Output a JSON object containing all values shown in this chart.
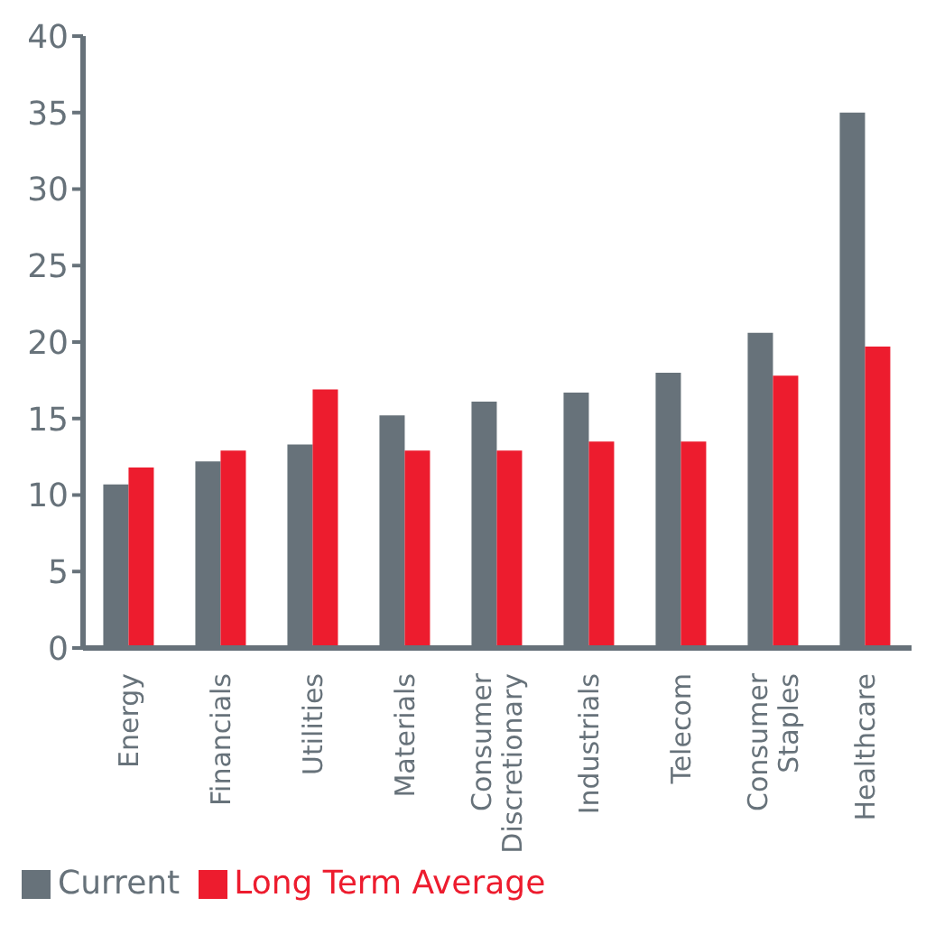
{
  "chart_data": {
    "type": "bar",
    "categories": [
      "Energy",
      "Financials",
      "Utilities",
      "Materials",
      "Consumer Discretionary",
      "Industrials",
      "Telecom",
      "Consumer Staples",
      "Healthcare"
    ],
    "series": [
      {
        "name": "Current",
        "color": "#67727a",
        "values": [
          10.7,
          12.2,
          13.3,
          15.2,
          16.1,
          16.7,
          18.0,
          20.6,
          35.0
        ]
      },
      {
        "name": "Long Term Average",
        "color": "#ed1c2e",
        "values": [
          11.8,
          12.9,
          16.9,
          12.9,
          12.9,
          13.5,
          13.5,
          17.8,
          19.7
        ]
      }
    ],
    "ylim": [
      0,
      40
    ],
    "yticks": [
      0,
      5,
      10,
      15,
      20,
      25,
      30,
      35,
      40
    ],
    "grid": false,
    "legend": "bottom left"
  }
}
